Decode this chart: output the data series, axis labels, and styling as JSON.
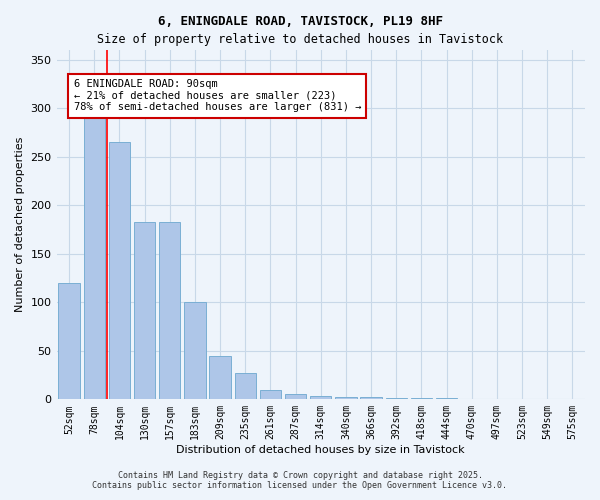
{
  "title1": "6, ENINGDALE ROAD, TAVISTOCK, PL19 8HF",
  "title2": "Size of property relative to detached houses in Tavistock",
  "xlabel": "Distribution of detached houses by size in Tavistock",
  "ylabel": "Number of detached properties",
  "bar_values": [
    120,
    290,
    265,
    183,
    183,
    100,
    45,
    27,
    10,
    5,
    3,
    2,
    2,
    1,
    1,
    1,
    0,
    0,
    0,
    0,
    0
  ],
  "categories": [
    "52sqm",
    "78sqm",
    "104sqm",
    "130sqm",
    "157sqm",
    "183sqm",
    "209sqm",
    "235sqm",
    "261sqm",
    "287sqm",
    "314sqm",
    "340sqm",
    "366sqm",
    "392sqm",
    "418sqm",
    "444sqm",
    "470sqm",
    "497sqm",
    "523sqm",
    "549sqm",
    "575sqm"
  ],
  "bar_color": "#aec6e8",
  "bar_edge_color": "#7aafd4",
  "grid_color": "#c8d8e8",
  "bg_color": "#eef4fb",
  "red_line_x": 1.5,
  "annotation_text": "6 ENINGDALE ROAD: 90sqm\n← 21% of detached houses are smaller (223)\n78% of semi-detached houses are larger (831) →",
  "annotation_box_color": "#ffffff",
  "annotation_box_edge": "#cc0000",
  "footer1": "Contains HM Land Registry data © Crown copyright and database right 2025.",
  "footer2": "Contains public sector information licensed under the Open Government Licence v3.0.",
  "ylim": [
    0,
    360
  ],
  "yticks": [
    0,
    50,
    100,
    150,
    200,
    250,
    300,
    350
  ]
}
